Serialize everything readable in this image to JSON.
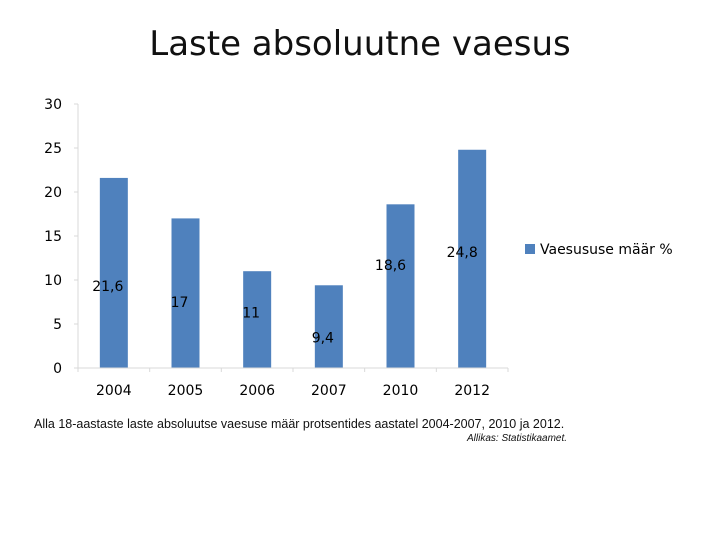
{
  "slide": {
    "title": "Laste absoluutne vaesus",
    "caption": "Alla 18-aastaste laste absoluutse vaesuse määr protsentides aastatel 2004-2007, 2010 ja 2012.",
    "source": "Allikas: Statistikaamet."
  },
  "chart_data": {
    "type": "bar",
    "title": "",
    "xlabel": "",
    "ylabel": "",
    "categories": [
      "2004",
      "2005",
      "2006",
      "2007",
      "2010",
      "2012"
    ],
    "series": [
      {
        "name": "Vaesususe määr %",
        "values": [
          21.6,
          17,
          11,
          9.4,
          18.6,
          24.8
        ],
        "labels": [
          "21,6",
          "17",
          "11",
          "9,4",
          "18,6",
          "24,8"
        ],
        "color": "#4F81BD"
      }
    ],
    "ylim": [
      0,
      30
    ],
    "yticks": [
      0,
      5,
      10,
      15,
      20,
      25,
      30
    ],
    "grid": false,
    "legend_position": "right"
  }
}
